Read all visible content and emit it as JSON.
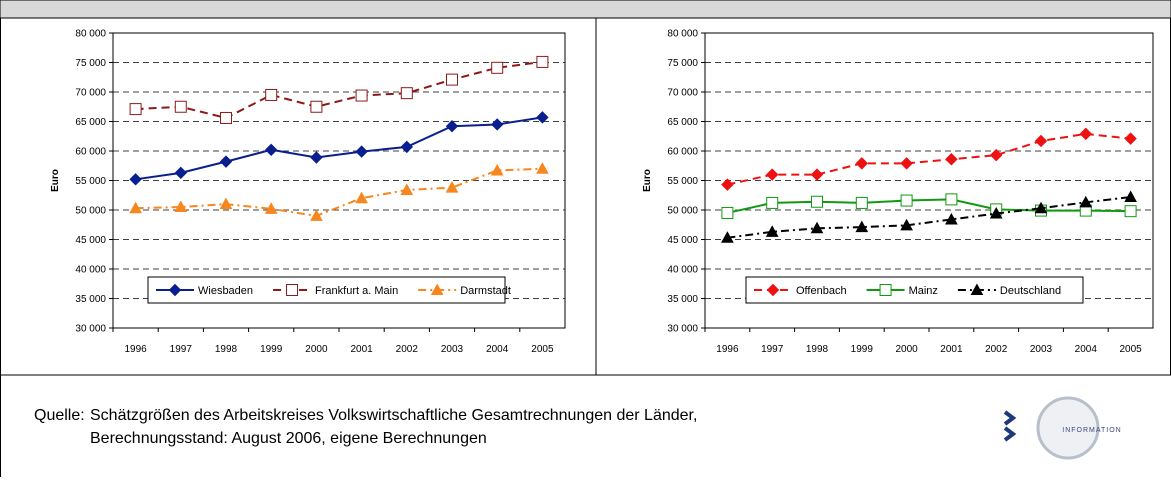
{
  "chart_data": [
    {
      "type": "line",
      "ylabel": "Euro",
      "categories": [
        "1996",
        "1997",
        "1998",
        "1999",
        "2000",
        "2001",
        "2002",
        "2003",
        "2004",
        "2005"
      ],
      "ylim": [
        30000,
        80000
      ],
      "yticks": [
        {
          "value": 30000,
          "label": "30 000"
        },
        {
          "value": 35000,
          "label": "35 000"
        },
        {
          "value": 40000,
          "label": "40 000"
        },
        {
          "value": 45000,
          "label": "45 000"
        },
        {
          "value": 50000,
          "label": "50 000"
        },
        {
          "value": 55000,
          "label": "55 000"
        },
        {
          "value": 60000,
          "label": "60 000"
        },
        {
          "value": 65000,
          "label": "65 000"
        },
        {
          "value": 70000,
          "label": "70 000"
        },
        {
          "value": 75000,
          "label": "75 000"
        },
        {
          "value": 80000,
          "label": "80 000"
        }
      ],
      "grid": true,
      "legend": "bottom",
      "series": [
        {
          "name": "Wiesbaden",
          "color": "#0a1f8f",
          "marker": "diamond",
          "filled": true,
          "dash": "solid",
          "values": [
            55200,
            56300,
            58200,
            60200,
            58900,
            59900,
            60700,
            64200,
            64500,
            65700
          ]
        },
        {
          "name": "Frankfurt a. Main",
          "color": "#8b1a1a",
          "marker": "square",
          "filled": false,
          "dash": "dashed",
          "values": [
            67100,
            67500,
            65600,
            69500,
            67500,
            69400,
            69800,
            72100,
            74100,
            75100
          ]
        },
        {
          "name": "Darmstadt",
          "color": "#f7861e",
          "marker": "triangle",
          "filled": true,
          "dash": "dashdot",
          "values": [
            50300,
            50500,
            51000,
            50200,
            49000,
            52000,
            53400,
            53800,
            56700,
            57000
          ]
        }
      ]
    },
    {
      "type": "line",
      "ylabel": "Euro",
      "categories": [
        "1996",
        "1997",
        "1998",
        "1999",
        "2000",
        "2001",
        "2002",
        "2003",
        "2004",
        "2005"
      ],
      "ylim": [
        30000,
        80000
      ],
      "yticks": [
        {
          "value": 30000,
          "label": "30 000"
        },
        {
          "value": 35000,
          "label": "35 000"
        },
        {
          "value": 40000,
          "label": "40 000"
        },
        {
          "value": 45000,
          "label": "45 000"
        },
        {
          "value": 50000,
          "label": "50 000"
        },
        {
          "value": 55000,
          "label": "55 000"
        },
        {
          "value": 60000,
          "label": "60 000"
        },
        {
          "value": 65000,
          "label": "65 000"
        },
        {
          "value": 70000,
          "label": "70 000"
        },
        {
          "value": 75000,
          "label": "75 000"
        },
        {
          "value": 80000,
          "label": "80 000"
        }
      ],
      "grid": true,
      "legend": "bottom",
      "series": [
        {
          "name": "Offenbach",
          "color": "#ee1111",
          "marker": "diamond",
          "filled": true,
          "dash": "dashed",
          "values": [
            54300,
            56000,
            56000,
            57900,
            57900,
            58600,
            59300,
            61700,
            62900,
            62100
          ]
        },
        {
          "name": "Mainz",
          "color": "#119911",
          "marker": "square",
          "filled": false,
          "dash": "solid",
          "values": [
            49500,
            51200,
            51400,
            51200,
            51600,
            51800,
            50100,
            49900,
            49900,
            49800
          ]
        },
        {
          "name": "Deutschland",
          "color": "#000000",
          "marker": "triangle",
          "filled": true,
          "dash": "dashdot",
          "values": [
            45300,
            46300,
            46900,
            47100,
            47400,
            48400,
            49400,
            50300,
            51300,
            52200
          ]
        }
      ]
    }
  ],
  "footer": {
    "label": "Quelle:",
    "lines": [
      "Schätzgrößen des Arbeitskreises Volkswirtschaftliche Gesamtrechnungen der Länder,",
      "Berechnungsstand: August 2006, eigene Berechnungen"
    ],
    "logo": "INFORMATION"
  }
}
